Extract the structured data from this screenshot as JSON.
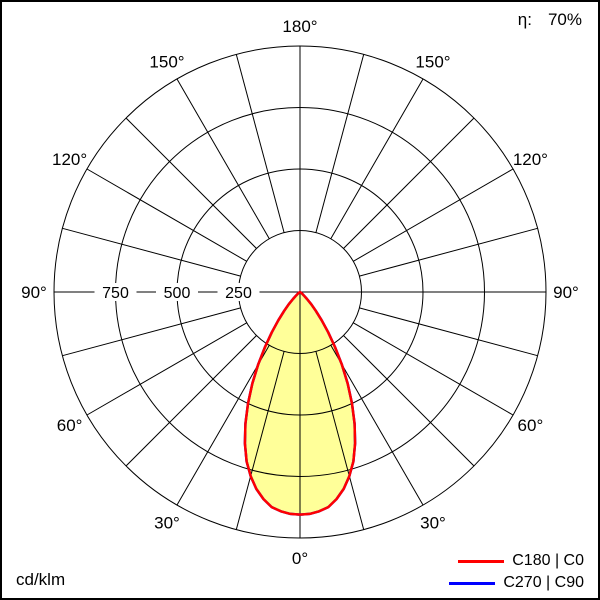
{
  "chart_data": {
    "type": "line",
    "coordinate_system": "polar",
    "title": "",
    "efficiency_label": "η:",
    "efficiency_value": "70%",
    "unit_label": "cd/klm",
    "radial_axis": {
      "ticks": [
        250,
        500,
        750
      ],
      "tick_labels": [
        "250",
        "500",
        "750"
      ],
      "max": 1000
    },
    "angular_axis": {
      "label_step_deg": 30,
      "spoke_step_deg": 15,
      "labels": [
        "0°",
        "30°",
        "60°",
        "90°",
        "120°",
        "150°",
        "180°"
      ]
    },
    "legend": [
      {
        "label": "C180 | C0",
        "color": "#ff0000"
      },
      {
        "label": "C270 | C90",
        "color": "#0000ff"
      }
    ],
    "series": [
      {
        "name": "C180 | C0",
        "color": "#ff0000",
        "fill": "#ffff99",
        "gamma_deg": [
          0,
          2.5,
          5,
          7.5,
          10,
          12.5,
          15,
          17.5,
          20,
          22.5,
          25,
          27.5,
          30,
          32.5,
          35,
          37.5,
          40,
          42.5,
          45,
          47.5,
          50,
          55,
          60,
          70,
          80,
          90
        ],
        "values_cd_per_klm": [
          905,
          903,
          895,
          882,
          855,
          820,
          775,
          722,
          655,
          580,
          500,
          420,
          340,
          265,
          200,
          145,
          100,
          68,
          40,
          25,
          15,
          6,
          3,
          1,
          0.5,
          0
        ]
      },
      {
        "name": "C270 | C90",
        "color": "#0000ff",
        "fill": "none",
        "gamma_deg": [
          0,
          2.5,
          5,
          7.5,
          10,
          12.5,
          15,
          17.5,
          20,
          22.5,
          25,
          27.5,
          30,
          32.5,
          35,
          37.5,
          40,
          42.5,
          45,
          47.5,
          50,
          55,
          60,
          70,
          80,
          90
        ],
        "values_cd_per_klm": [
          905,
          903,
          895,
          882,
          855,
          820,
          775,
          722,
          655,
          580,
          500,
          420,
          340,
          265,
          200,
          145,
          100,
          68,
          40,
          25,
          15,
          6,
          3,
          1,
          0.5,
          0
        ]
      }
    ]
  }
}
